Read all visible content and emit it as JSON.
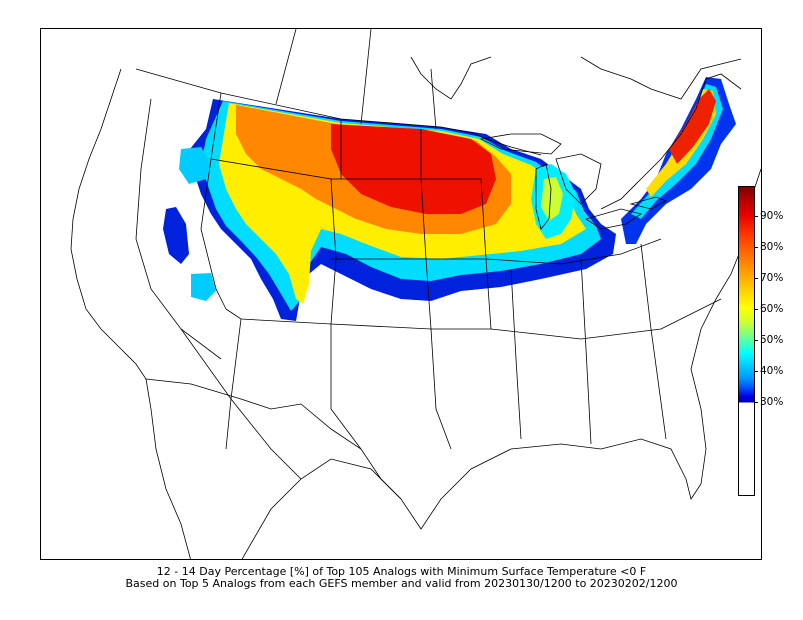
{
  "caption": {
    "line1": "12 - 14 Day Percentage [%] of Top 105 Analogs with Minimum Surface Temperature <0 F",
    "line2": "Based on Top 5 Analogs from each GEFS member and valid from 20230130/1200 to 20230202/1200"
  },
  "colorbar": {
    "ticks": [
      "90%",
      "80%",
      "70%",
      "60%",
      "50%",
      "40%",
      "30%"
    ],
    "colors": [
      "#7f0000",
      "#e60000",
      "#ff6600",
      "#ffcc00",
      "#ffff00",
      "#00ffff",
      "#0055ff",
      "#0000b3"
    ]
  }
}
